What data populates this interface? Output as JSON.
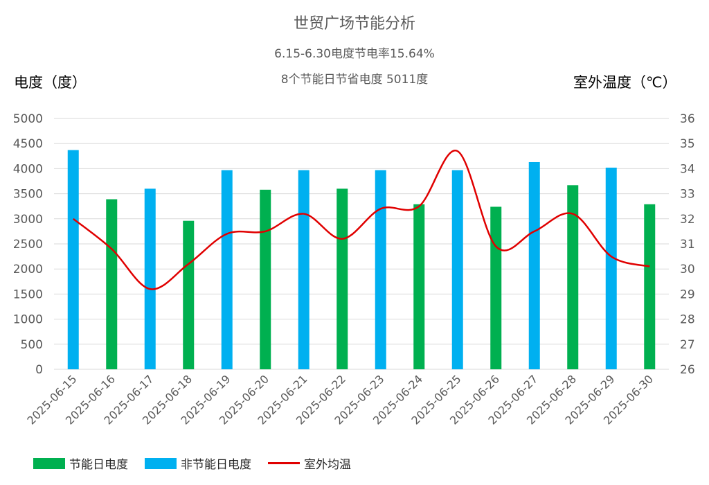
{
  "chart_data": {
    "type": "bar",
    "title": "世贸广场节能分析",
    "subtitle_1": "6.15-6.30电度节电率15.64%",
    "subtitle_2": "8个节能日节省电度 5011度",
    "ylabel": "电度（度）",
    "y2label": "室外温度（℃）",
    "ylim": [
      0,
      5000
    ],
    "y2lim": [
      26,
      36
    ],
    "yticks": [
      "0",
      "500",
      "1000",
      "1500",
      "2000",
      "2500",
      "3000",
      "3500",
      "4000",
      "4500",
      "5000"
    ],
    "y2ticks": [
      "26",
      "27",
      "28",
      "29",
      "30",
      "31",
      "32",
      "33",
      "34",
      "35",
      "36"
    ],
    "categories": [
      "2025-06-15",
      "2025-06-16",
      "2025-06-17",
      "2025-06-18",
      "2025-06-19",
      "2025-06-20",
      "2025-06-21",
      "2025-06-22",
      "2025-06-23",
      "2025-06-24",
      "2025-06-25",
      "2025-06-26",
      "2025-06-27",
      "2025-06-28",
      "2025-06-29",
      "2025-06-30"
    ],
    "bar_kinds": [
      "non",
      "save",
      "non",
      "save",
      "non",
      "save",
      "non",
      "save",
      "non",
      "save",
      "non",
      "save",
      "non",
      "save",
      "non",
      "save"
    ],
    "values": [
      4370,
      3390,
      3600,
      2960,
      3970,
      3580,
      3970,
      3600,
      3970,
      3290,
      3970,
      3240,
      4130,
      3670,
      4020,
      3290
    ],
    "series": [
      {
        "name": "节能日电度",
        "color": "#00b050"
      },
      {
        "name": "非节能日电度",
        "color": "#00b0f0"
      },
      {
        "name": "室外均温",
        "color": "#e00000",
        "axis": "right",
        "type": "line",
        "values": [
          32.0,
          30.8,
          29.2,
          30.2,
          31.4,
          31.5,
          32.2,
          31.2,
          32.4,
          32.5,
          34.7,
          30.9,
          31.5,
          32.2,
          30.5,
          30.1
        ]
      }
    ],
    "grid": true,
    "legend": "bottom-left"
  }
}
